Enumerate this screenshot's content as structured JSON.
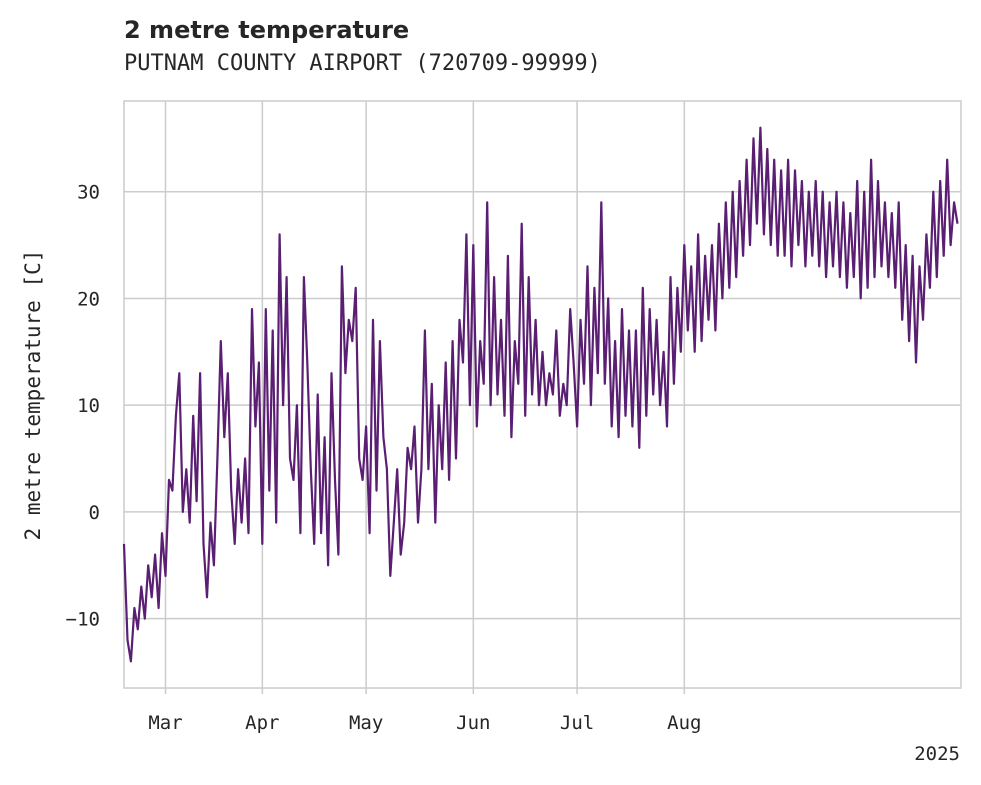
{
  "chart_data": {
    "type": "line",
    "title": "2 metre temperature",
    "subtitle": "PUTNAM COUNTY AIRPORT (720709-99999)",
    "ylabel": "2 metre temperature [C]",
    "xlabel": "",
    "year_label": "2025",
    "ylim": [
      -16.5,
      38.5
    ],
    "xlim": [
      -12,
      230
    ],
    "y_ticks": [
      -10,
      0,
      10,
      20,
      30
    ],
    "y_tick_labels": [
      "−10",
      "0",
      "10",
      "20",
      "30"
    ],
    "x_ticks": [
      0,
      28,
      58,
      89,
      119,
      150
    ],
    "x_tick_labels": [
      "Mar",
      "Apr",
      "May",
      "Jun",
      "Jul",
      "Aug"
    ],
    "line_color": "#5a1e72",
    "grid": true,
    "series_note": "approximate daily min/max envelope; x = days since Mar 1",
    "series": [
      {
        "name": "2 metre temperature",
        "points": [
          [
            -12,
            -3
          ],
          [
            -11,
            -12
          ],
          [
            -10,
            -14
          ],
          [
            -9,
            -9
          ],
          [
            -8,
            -11
          ],
          [
            -7,
            -7
          ],
          [
            -6,
            -10
          ],
          [
            -5,
            -5
          ],
          [
            -4,
            -8
          ],
          [
            -3,
            -4
          ],
          [
            -2,
            -9
          ],
          [
            -1,
            -2
          ],
          [
            0,
            -6
          ],
          [
            1,
            3
          ],
          [
            2,
            2
          ],
          [
            3,
            9
          ],
          [
            4,
            13
          ],
          [
            5,
            0
          ],
          [
            6,
            4
          ],
          [
            7,
            -1
          ],
          [
            8,
            9
          ],
          [
            9,
            1
          ],
          [
            10,
            13
          ],
          [
            11,
            -3
          ],
          [
            12,
            -8
          ],
          [
            13,
            -1
          ],
          [
            14,
            -5
          ],
          [
            15,
            5
          ],
          [
            16,
            16
          ],
          [
            17,
            7
          ],
          [
            18,
            13
          ],
          [
            19,
            2
          ],
          [
            20,
            -3
          ],
          [
            21,
            4
          ],
          [
            22,
            -1
          ],
          [
            23,
            5
          ],
          [
            24,
            -2
          ],
          [
            25,
            19
          ],
          [
            26,
            8
          ],
          [
            27,
            14
          ],
          [
            28,
            -3
          ],
          [
            29,
            19
          ],
          [
            30,
            2
          ],
          [
            31,
            17
          ],
          [
            32,
            -1
          ],
          [
            33,
            26
          ],
          [
            34,
            10
          ],
          [
            35,
            22
          ],
          [
            36,
            5
          ],
          [
            37,
            3
          ],
          [
            38,
            10
          ],
          [
            39,
            -2
          ],
          [
            40,
            22
          ],
          [
            41,
            14
          ],
          [
            42,
            4
          ],
          [
            43,
            -3
          ],
          [
            44,
            11
          ],
          [
            45,
            -2
          ],
          [
            46,
            7
          ],
          [
            47,
            -5
          ],
          [
            48,
            13
          ],
          [
            49,
            3
          ],
          [
            50,
            -4
          ],
          [
            51,
            23
          ],
          [
            52,
            13
          ],
          [
            53,
            18
          ],
          [
            54,
            16
          ],
          [
            55,
            21
          ],
          [
            56,
            5
          ],
          [
            57,
            3
          ],
          [
            58,
            8
          ],
          [
            59,
            -2
          ],
          [
            60,
            18
          ],
          [
            61,
            2
          ],
          [
            62,
            16
          ],
          [
            63,
            7
          ],
          [
            64,
            4
          ],
          [
            65,
            -6
          ],
          [
            66,
            -1
          ],
          [
            67,
            4
          ],
          [
            68,
            -4
          ],
          [
            69,
            -1
          ],
          [
            70,
            6
          ],
          [
            71,
            4
          ],
          [
            72,
            8
          ],
          [
            73,
            -1
          ],
          [
            74,
            4
          ],
          [
            75,
            17
          ],
          [
            76,
            4
          ],
          [
            77,
            12
          ],
          [
            78,
            -1
          ],
          [
            79,
            10
          ],
          [
            80,
            4
          ],
          [
            81,
            14
          ],
          [
            82,
            3
          ],
          [
            83,
            16
          ],
          [
            84,
            5
          ],
          [
            85,
            18
          ],
          [
            86,
            14
          ],
          [
            87,
            26
          ],
          [
            88,
            10
          ],
          [
            89,
            25
          ],
          [
            90,
            8
          ],
          [
            91,
            16
          ],
          [
            92,
            12
          ],
          [
            93,
            29
          ],
          [
            94,
            10
          ],
          [
            95,
            22
          ],
          [
            96,
            11
          ],
          [
            97,
            18
          ],
          [
            98,
            9
          ],
          [
            99,
            24
          ],
          [
            100,
            7
          ],
          [
            101,
            16
          ],
          [
            102,
            12
          ],
          [
            103,
            27
          ],
          [
            104,
            9
          ],
          [
            105,
            22
          ],
          [
            106,
            11
          ],
          [
            107,
            18
          ],
          [
            108,
            10
          ],
          [
            109,
            15
          ],
          [
            110,
            10
          ],
          [
            111,
            13
          ],
          [
            112,
            11
          ],
          [
            113,
            17
          ],
          [
            114,
            9
          ],
          [
            115,
            12
          ],
          [
            116,
            10
          ],
          [
            117,
            19
          ],
          [
            118,
            14
          ],
          [
            119,
            8
          ],
          [
            120,
            18
          ],
          [
            121,
            12
          ],
          [
            122,
            23
          ],
          [
            123,
            10
          ],
          [
            124,
            21
          ],
          [
            125,
            13
          ],
          [
            126,
            29
          ],
          [
            127,
            12
          ],
          [
            128,
            20
          ],
          [
            129,
            8
          ],
          [
            130,
            16
          ],
          [
            131,
            7
          ],
          [
            132,
            19
          ],
          [
            133,
            9
          ],
          [
            134,
            17
          ],
          [
            135,
            8
          ],
          [
            136,
            17
          ],
          [
            137,
            6
          ],
          [
            138,
            21
          ],
          [
            139,
            9
          ],
          [
            140,
            19
          ],
          [
            141,
            11
          ],
          [
            142,
            18
          ],
          [
            143,
            10
          ],
          [
            144,
            15
          ],
          [
            145,
            8
          ],
          [
            146,
            22
          ],
          [
            147,
            12
          ],
          [
            148,
            21
          ],
          [
            149,
            15
          ],
          [
            150,
            25
          ],
          [
            151,
            17
          ],
          [
            152,
            23
          ],
          [
            153,
            15
          ],
          [
            154,
            26
          ],
          [
            155,
            16
          ],
          [
            156,
            24
          ],
          [
            157,
            18
          ],
          [
            158,
            25
          ],
          [
            159,
            17
          ],
          [
            160,
            27
          ],
          [
            161,
            20
          ],
          [
            162,
            29
          ],
          [
            163,
            21
          ],
          [
            164,
            30
          ],
          [
            165,
            22
          ],
          [
            166,
            31
          ],
          [
            167,
            24
          ],
          [
            168,
            33
          ],
          [
            169,
            25
          ],
          [
            170,
            35
          ],
          [
            171,
            27
          ],
          [
            172,
            36
          ],
          [
            173,
            26
          ],
          [
            174,
            34
          ],
          [
            175,
            25
          ],
          [
            176,
            33
          ],
          [
            177,
            24
          ],
          [
            178,
            32
          ],
          [
            179,
            24
          ],
          [
            180,
            33
          ],
          [
            181,
            23
          ],
          [
            182,
            32
          ],
          [
            183,
            25
          ],
          [
            184,
            31
          ],
          [
            185,
            23
          ],
          [
            186,
            30
          ],
          [
            187,
            24
          ],
          [
            188,
            31
          ],
          [
            189,
            23
          ],
          [
            190,
            30
          ],
          [
            191,
            22
          ],
          [
            192,
            29
          ],
          [
            193,
            23
          ],
          [
            194,
            30
          ],
          [
            195,
            22
          ],
          [
            196,
            29
          ],
          [
            197,
            21
          ],
          [
            198,
            28
          ],
          [
            199,
            22
          ],
          [
            200,
            31
          ],
          [
            201,
            20
          ],
          [
            202,
            30
          ],
          [
            203,
            21
          ],
          [
            204,
            33
          ],
          [
            205,
            22
          ],
          [
            206,
            31
          ],
          [
            207,
            23
          ],
          [
            208,
            29
          ],
          [
            209,
            22
          ],
          [
            210,
            28
          ],
          [
            211,
            21
          ],
          [
            212,
            29
          ],
          [
            213,
            18
          ],
          [
            214,
            25
          ],
          [
            215,
            16
          ],
          [
            216,
            24
          ],
          [
            217,
            14
          ],
          [
            218,
            23
          ],
          [
            219,
            18
          ],
          [
            220,
            26
          ],
          [
            221,
            21
          ],
          [
            222,
            30
          ],
          [
            223,
            22
          ],
          [
            224,
            31
          ],
          [
            225,
            24
          ],
          [
            226,
            33
          ],
          [
            227,
            25
          ],
          [
            228,
            29
          ],
          [
            229,
            27
          ]
        ]
      }
    ]
  }
}
